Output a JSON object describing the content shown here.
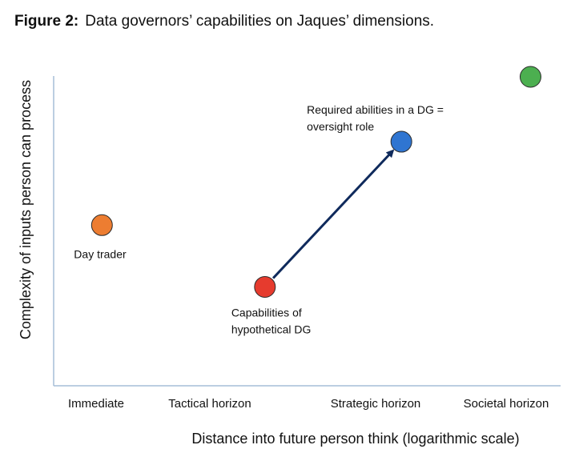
{
  "caption": {
    "label": "Figure 2:",
    "text": "Data governors’ capabilities on Jaques’ dimensions."
  },
  "chart_data": {
    "type": "scatter",
    "title": "",
    "xlabel": "Distance into future person think (logarithmic scale)",
    "ylabel": "Complexity of inputs person can process",
    "x_scale": "log",
    "x_categories": [
      "Immediate",
      "Tactical horizon",
      "Strategic horizon",
      "Societal horizon"
    ],
    "xlim": [
      0,
      4
    ],
    "ylim": [
      0,
      10
    ],
    "grid": false,
    "legend": "none",
    "points": [
      {
        "x": 0.4,
        "y": 5.2,
        "color": "#ED7D31",
        "label": [
          "Day trader"
        ]
      },
      {
        "x": 1.75,
        "y": 3.2,
        "color": "#E63B2E",
        "label": [
          "Capabilities of",
          "hypothetical DG"
        ]
      },
      {
        "x": 2.88,
        "y": 7.9,
        "color": "#2F75D1",
        "label": [
          "Required abilities in a DG =",
          "oversight role"
        ]
      },
      {
        "x": 3.95,
        "y": 10.0,
        "color": "#4CAF50",
        "label": []
      }
    ],
    "arrows": [
      {
        "from": [
          1.75,
          3.2
        ],
        "to": [
          2.88,
          7.9
        ],
        "color": "#0F2A5C"
      }
    ]
  }
}
